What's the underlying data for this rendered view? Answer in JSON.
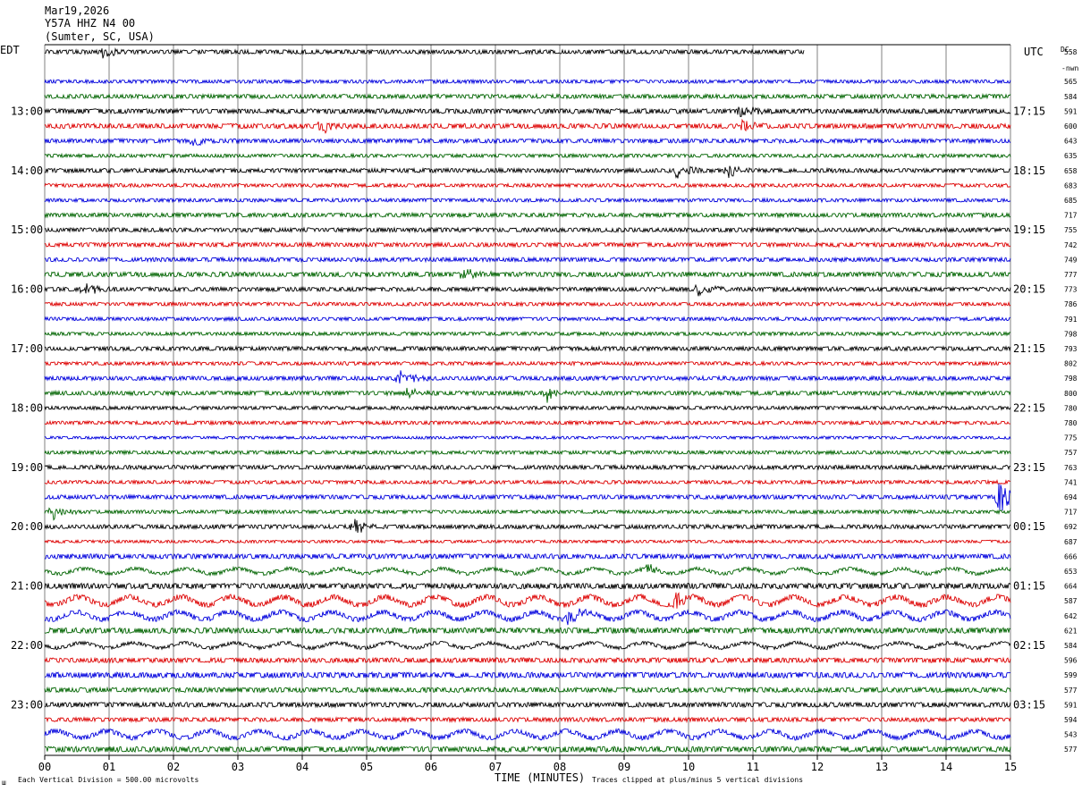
{
  "header": {
    "date": "Mar19,2026",
    "station": "Y57A HHZ N4 00",
    "location": "(Sumter, SC, USA)",
    "left_tz": "EDT",
    "right_tz": "UTC",
    "dc_label": "DC",
    "dc_sub": "-nwn"
  },
  "footer": {
    "xlabel": "TIME (MINUTES)",
    "scale_note": "Each Vertical Division =  500.00 microvolts",
    "clip_note": "Traces clipped at plus/minus 5 vertical divisions",
    "corner_mark": "ш"
  },
  "colors": {
    "black": "#000000",
    "red": "#dd0000",
    "blue": "#0000dd",
    "green": "#006400",
    "grid": "#808080"
  },
  "chart_data": {
    "type": "line",
    "title": "",
    "xlabel": "TIME (MINUTES)",
    "xlim": [
      0,
      15
    ],
    "x_ticks": [
      "00",
      "01",
      "02",
      "03",
      "04",
      "05",
      "06",
      "07",
      "08",
      "09",
      "10",
      "11",
      "12",
      "13",
      "14",
      "15"
    ],
    "left_hour_labels": [
      {
        "row": 4,
        "label": "13:00"
      },
      {
        "row": 8,
        "label": "14:00"
      },
      {
        "row": 12,
        "label": "15:00"
      },
      {
        "row": 16,
        "label": "16:00"
      },
      {
        "row": 20,
        "label": "17:00"
      },
      {
        "row": 24,
        "label": "18:00"
      },
      {
        "row": 28,
        "label": "19:00"
      },
      {
        "row": 32,
        "label": "20:00"
      },
      {
        "row": 36,
        "label": "21:00"
      },
      {
        "row": 40,
        "label": "22:00"
      },
      {
        "row": 44,
        "label": "23:00"
      }
    ],
    "right_hour_labels": [
      {
        "row": 0,
        "label": "UTC"
      },
      {
        "row": 4,
        "label": "17:15"
      },
      {
        "row": 8,
        "label": "18:15"
      },
      {
        "row": 12,
        "label": "19:15"
      },
      {
        "row": 16,
        "label": "20:15"
      },
      {
        "row": 20,
        "label": "21:15"
      },
      {
        "row": 24,
        "label": "22:15"
      },
      {
        "row": 28,
        "label": "23:15"
      },
      {
        "row": 32,
        "label": "00:15"
      },
      {
        "row": 36,
        "label": "01:15"
      },
      {
        "row": 40,
        "label": "02:15"
      },
      {
        "row": 44,
        "label": "03:15"
      }
    ],
    "row_colors": [
      "black",
      "red",
      "blue",
      "green"
    ],
    "trace_count": 48,
    "first_trace_end_minute": 11.8,
    "hidden_rows": [
      1
    ],
    "dc_offsets": [
      "558",
      "",
      "565",
      "584",
      "591",
      "600",
      "643",
      "635",
      "658",
      "683",
      "685",
      "717",
      "755",
      "742",
      "749",
      "777",
      "773",
      "786",
      "791",
      "798",
      "793",
      "802",
      "798",
      "800",
      "780",
      "780",
      "775",
      "757",
      "763",
      "741",
      "694",
      "717",
      "692",
      "687",
      "666",
      "653",
      "664",
      "587",
      "642",
      "621",
      "584",
      "596",
      "599",
      "577",
      "591",
      "594",
      "543",
      "577"
    ],
    "noise_level": [
      0.6,
      0.6,
      0.5,
      0.6,
      0.7,
      0.7,
      0.6,
      0.5,
      0.6,
      0.5,
      0.5,
      0.6,
      0.6,
      0.6,
      0.6,
      0.7,
      0.6,
      0.5,
      0.5,
      0.5,
      0.6,
      0.5,
      0.6,
      0.6,
      0.5,
      0.5,
      0.4,
      0.5,
      0.6,
      0.5,
      0.6,
      0.5,
      0.6,
      0.4,
      0.7,
      0.9,
      0.8,
      1.4,
      1.3,
      0.8,
      0.9,
      0.7,
      0.8,
      0.7,
      0.7,
      0.6,
      1.2,
      0.8
    ],
    "events": [
      {
        "row": 0,
        "minute": 0.9,
        "amp": 1.6
      },
      {
        "row": 4,
        "minute": 10.8,
        "amp": 2.2
      },
      {
        "row": 5,
        "minute": 4.3,
        "amp": 1.8
      },
      {
        "row": 5,
        "minute": 10.8,
        "amp": 1.6
      },
      {
        "row": 6,
        "minute": 2.3,
        "amp": 1.4
      },
      {
        "row": 8,
        "minute": 9.8,
        "amp": 1.8
      },
      {
        "row": 8,
        "minute": 10.6,
        "amp": 1.8
      },
      {
        "row": 15,
        "minute": 6.5,
        "amp": 1.6
      },
      {
        "row": 16,
        "minute": 0.6,
        "amp": 2.0
      },
      {
        "row": 16,
        "minute": 10.1,
        "amp": 2.0
      },
      {
        "row": 22,
        "minute": 5.5,
        "amp": 1.8
      },
      {
        "row": 23,
        "minute": 5.6,
        "amp": 1.6
      },
      {
        "row": 23,
        "minute": 7.8,
        "amp": 1.8
      },
      {
        "row": 30,
        "minute": 14.8,
        "amp": 6.0
      },
      {
        "row": 31,
        "minute": 0.1,
        "amp": 2.2
      },
      {
        "row": 32,
        "minute": 4.8,
        "amp": 1.8
      },
      {
        "row": 35,
        "minute": 9.3,
        "amp": 1.6
      },
      {
        "row": 37,
        "minute": 9.8,
        "amp": 2.2
      },
      {
        "row": 38,
        "minute": 8.1,
        "amp": 2.4
      }
    ]
  }
}
